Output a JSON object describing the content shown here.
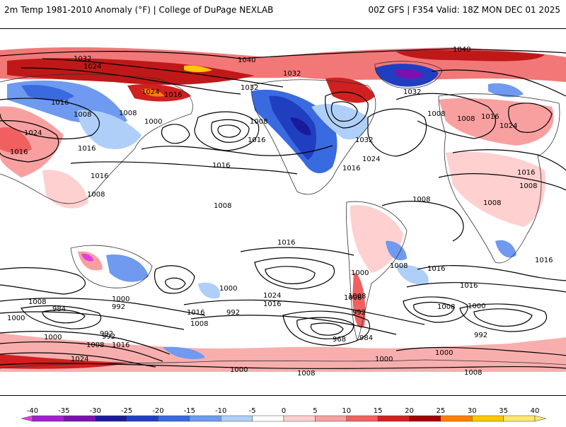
{
  "header": {
    "title_left": "2m Temp 1981-2010 Anomaly (°F) | College of DuPage NEXLAB",
    "title_right": "00Z GFS | F354 Valid: 18Z MON DEC 01 2025"
  },
  "map": {
    "isobar_labels": [
      {
        "text": "1032"
      },
      {
        "text": "1024"
      },
      {
        "text": "1040"
      },
      {
        "text": "1040"
      },
      {
        "text": "1032"
      },
      {
        "text": "1032"
      },
      {
        "text": "1032"
      },
      {
        "text": "1024"
      },
      {
        "text": "1016"
      },
      {
        "text": "1016"
      },
      {
        "text": "1008"
      },
      {
        "text": "1008"
      },
      {
        "text": "1000"
      },
      {
        "text": "1008"
      },
      {
        "text": "1016"
      },
      {
        "text": "1016"
      },
      {
        "text": "1016"
      },
      {
        "text": "1024"
      },
      {
        "text": "1032"
      },
      {
        "text": "1024"
      },
      {
        "text": "1016"
      },
      {
        "text": "1008"
      },
      {
        "text": "1008"
      },
      {
        "text": "1016"
      },
      {
        "text": "1024"
      },
      {
        "text": "1016"
      },
      {
        "text": "1008"
      },
      {
        "text": "1008"
      },
      {
        "text": "1008"
      },
      {
        "text": "1008"
      },
      {
        "text": "1016"
      },
      {
        "text": "1008"
      },
      {
        "text": "1016"
      },
      {
        "text": "1016"
      },
      {
        "text": "1000"
      },
      {
        "text": "1000"
      },
      {
        "text": "1024"
      },
      {
        "text": "1016"
      },
      {
        "text": "1008"
      },
      {
        "text": "992"
      },
      {
        "text": "1016"
      },
      {
        "text": "1008"
      },
      {
        "text": "1000"
      },
      {
        "text": "992"
      },
      {
        "text": "1008"
      },
      {
        "text": "984"
      },
      {
        "text": "1000"
      },
      {
        "text": "992"
      },
      {
        "text": "1008"
      },
      {
        "text": "1000"
      },
      {
        "text": "992"
      },
      {
        "text": "1008"
      },
      {
        "text": "1016"
      },
      {
        "text": "1024"
      },
      {
        "text": "968"
      },
      {
        "text": "984"
      },
      {
        "text": "992"
      },
      {
        "text": "1008"
      },
      {
        "text": "1000"
      },
      {
        "text": "992"
      },
      {
        "text": "1016"
      },
      {
        "text": "1000"
      },
      {
        "text": "1000"
      },
      {
        "text": "1000"
      },
      {
        "text": "1008"
      },
      {
        "text": "1008"
      },
      {
        "text": "1008"
      },
      {
        "text": "1016"
      },
      {
        "text": "1016"
      }
    ]
  },
  "colorbar": {
    "ticks": [
      "-40",
      "-35",
      "-30",
      "-25",
      "-20",
      "-15",
      "-10",
      "-5",
      "0",
      "5",
      "10",
      "15",
      "20",
      "25",
      "30",
      "35",
      "40"
    ],
    "colors": [
      "#e040e0",
      "#a020d0",
      "#7a10b0",
      "#1a1a9a",
      "#1f3fc0",
      "#3a6ae0",
      "#6f9af0",
      "#b0cff8",
      "#ffffff",
      "#ffd0d0",
      "#f8a0a0",
      "#f06060",
      "#d02020",
      "#a00000",
      "#ff8000",
      "#ffc800",
      "#ffe870"
    ]
  }
}
